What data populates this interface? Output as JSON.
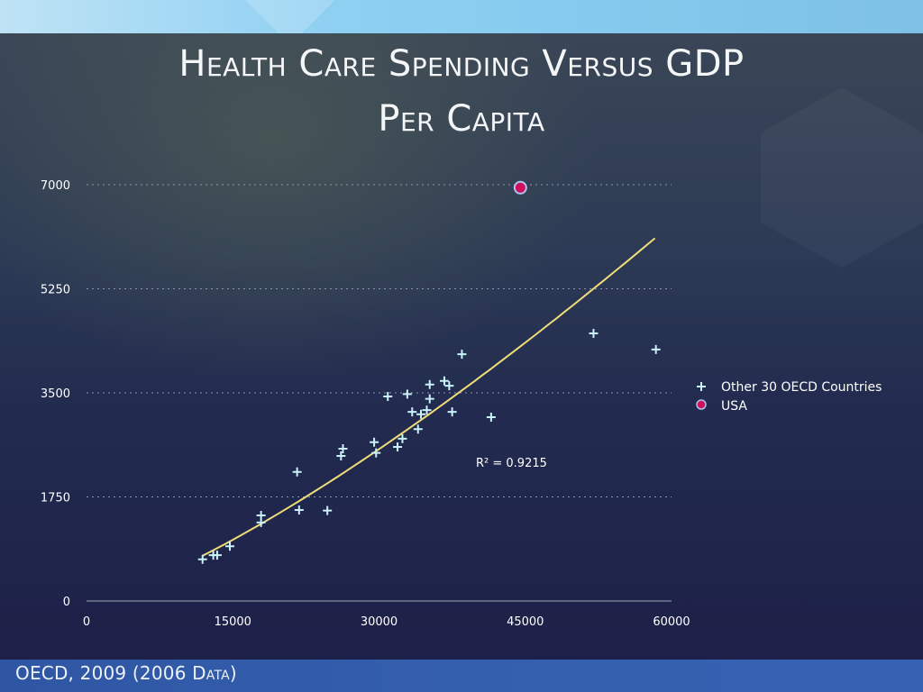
{
  "slide": {
    "title_line1": "Health Care Spending Versus GDP",
    "title_line2": "Per Capita",
    "footer": "OECD, 2009 (2006 Data)"
  },
  "colors": {
    "marker_cross": "#c9f1f8",
    "usa_fill": "#d0105a",
    "usa_stroke": "#a9c4ee",
    "trendline": "#f0dd78",
    "grid": "#8a96a8",
    "axis": "#9aa3b3"
  },
  "chart_data": {
    "type": "scatter",
    "title": "Health Care Spending Versus GDP Per Capita",
    "xlabel": "",
    "ylabel": "",
    "xlim": [
      0,
      60000
    ],
    "ylim": [
      0,
      7000
    ],
    "x_ticks": [
      "0",
      "15000",
      "30000",
      "45000",
      "60000"
    ],
    "x_tick_values": [
      0,
      15000,
      30000,
      45000,
      60000
    ],
    "y_ticks": [
      "0",
      "1750",
      "3500",
      "5250",
      "7000"
    ],
    "y_tick_values": [
      0,
      1750,
      3500,
      5250,
      7000
    ],
    "grid": "horizontal-dotted",
    "legend_position": "right",
    "series": [
      {
        "name": "Other 30 OECD Countries",
        "marker": "cross",
        "points": [
          [
            11900,
            700
          ],
          [
            13000,
            770
          ],
          [
            13400,
            770
          ],
          [
            14700,
            920
          ],
          [
            17900,
            1440
          ],
          [
            17900,
            1320
          ],
          [
            21600,
            2170
          ],
          [
            21800,
            1530
          ],
          [
            24700,
            1520
          ],
          [
            26100,
            2440
          ],
          [
            26300,
            2560
          ],
          [
            29500,
            2670
          ],
          [
            29700,
            2490
          ],
          [
            30900,
            3440
          ],
          [
            31900,
            2590
          ],
          [
            32400,
            2730
          ],
          [
            32900,
            3480
          ],
          [
            33400,
            3180
          ],
          [
            34000,
            2890
          ],
          [
            34300,
            3140
          ],
          [
            34900,
            3210
          ],
          [
            35200,
            3640
          ],
          [
            35200,
            3400
          ],
          [
            36700,
            3700
          ],
          [
            37200,
            3620
          ],
          [
            37500,
            3180
          ],
          [
            38500,
            4150
          ],
          [
            41500,
            3090
          ],
          [
            52000,
            4500
          ],
          [
            58400,
            4230
          ]
        ]
      },
      {
        "name": "USA",
        "marker": "circle",
        "points": [
          [
            44500,
            6950
          ]
        ]
      }
    ],
    "trendline": {
      "type": "power",
      "x_range": [
        11900,
        58300
      ],
      "y_range": [
        760,
        6100
      ],
      "r_squared_label": "R² = 0.9215"
    }
  }
}
